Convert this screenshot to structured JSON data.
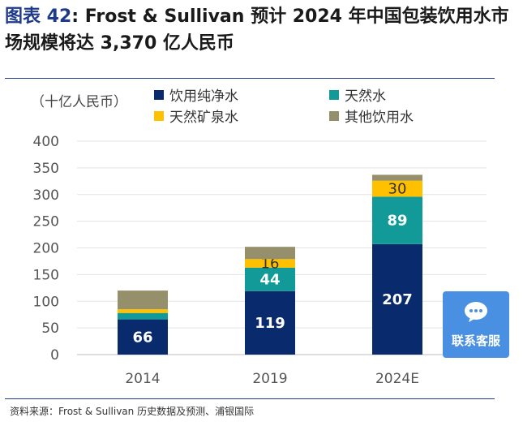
{
  "title": {
    "figure_label": "图表 42",
    "text": ": Frost & Sullivan 预计 2024 年中国包装饮用水市场规模将达 3,370 亿人民币"
  },
  "source": "资料来源：Frost & Sullivan 历史数据及预测、浦银国际",
  "support_button": {
    "label": "联系客服",
    "icon": "chat-bubble-icon"
  },
  "chart_data": {
    "type": "bar",
    "stacked": true,
    "unit_label": "（十亿人民币）",
    "categories": [
      "2014",
      "2019",
      "2024E"
    ],
    "ylim": [
      0,
      400
    ],
    "yticks": [
      0,
      50,
      100,
      150,
      200,
      250,
      300,
      350,
      400
    ],
    "grid": true,
    "legend_position": "top",
    "series": [
      {
        "name": "饮用纯净水",
        "color": "#0a2a6e",
        "values": [
          66,
          119,
          207
        ],
        "labels": [
          "66",
          "119",
          "207"
        ]
      },
      {
        "name": "天然水",
        "color": "#119a98",
        "values": [
          12,
          44,
          89
        ],
        "labels": [
          "",
          "44",
          "89"
        ]
      },
      {
        "name": "天然矿泉水",
        "color": "#ffc000",
        "values": [
          7,
          16,
          30
        ],
        "labels": [
          "",
          "16",
          "30"
        ]
      },
      {
        "name": "其他饮用水",
        "color": "#958f6c",
        "values": [
          35,
          23,
          11
        ],
        "labels": [
          "",
          "",
          ""
        ]
      }
    ]
  }
}
